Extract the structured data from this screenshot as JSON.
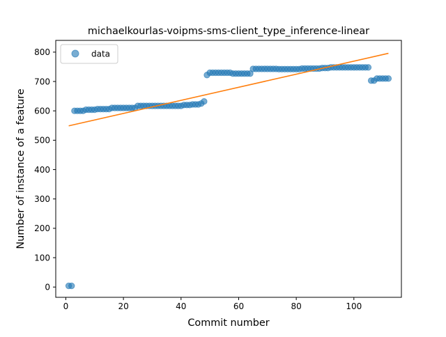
{
  "chart_data": {
    "type": "scatter",
    "title": "michaelkourlas-voipms-sms-client_type_inference-linear",
    "xlabel": "Commit number",
    "ylabel": "Number of instance of a feature",
    "xlim": [
      -3.5,
      116.5
    ],
    "ylim": [
      -35,
      840
    ],
    "xticks": [
      0,
      20,
      40,
      60,
      80,
      100
    ],
    "yticks": [
      0,
      100,
      200,
      300,
      400,
      500,
      600,
      700,
      800
    ],
    "grid": false,
    "legend_position": "top-left",
    "series": [
      {
        "name": "data",
        "color": "#1f77b4",
        "x": [
          1,
          2,
          3,
          4,
          5,
          6,
          7,
          8,
          9,
          10,
          11,
          12,
          13,
          14,
          15,
          16,
          17,
          18,
          19,
          20,
          21,
          22,
          23,
          24,
          25,
          26,
          27,
          28,
          29,
          30,
          31,
          32,
          33,
          34,
          35,
          36,
          37,
          38,
          39,
          40,
          41,
          42,
          43,
          44,
          45,
          46,
          47,
          48,
          49,
          50,
          51,
          52,
          53,
          54,
          55,
          56,
          57,
          58,
          59,
          60,
          61,
          62,
          63,
          64,
          65,
          66,
          67,
          68,
          69,
          70,
          71,
          72,
          73,
          74,
          75,
          76,
          77,
          78,
          79,
          80,
          81,
          82,
          83,
          84,
          85,
          86,
          87,
          88,
          89,
          90,
          91,
          92,
          93,
          94,
          95,
          96,
          97,
          98,
          99,
          100,
          101,
          102,
          103,
          104,
          105,
          106,
          107,
          108,
          109,
          110,
          111,
          112
        ],
        "y": [
          4,
          4,
          600,
          600,
          600,
          600,
          604,
          604,
          604,
          604,
          606,
          606,
          606,
          606,
          606,
          610,
          610,
          610,
          610,
          610,
          610,
          610,
          610,
          610,
          617,
          617,
          617,
          617,
          617,
          617,
          617,
          617,
          617,
          617,
          617,
          617,
          617,
          617,
          617,
          617,
          620,
          620,
          620,
          622,
          622,
          622,
          625,
          632,
          722,
          730,
          730,
          730,
          730,
          730,
          730,
          730,
          730,
          727,
          727,
          727,
          727,
          727,
          727,
          727,
          743,
          743,
          743,
          743,
          743,
          743,
          743,
          743,
          743,
          742,
          742,
          742,
          742,
          742,
          742,
          742,
          742,
          744,
          744,
          744,
          744,
          744,
          744,
          744,
          746,
          746,
          746,
          748,
          748,
          748,
          748,
          748,
          748,
          748,
          748,
          748,
          748,
          748,
          748,
          748,
          748,
          703,
          703,
          710,
          710,
          710,
          710,
          710
        ]
      }
    ],
    "fit_line": {
      "color": "#ff7f0e",
      "x": [
        1,
        112
      ],
      "y": [
        549,
        796
      ]
    }
  }
}
